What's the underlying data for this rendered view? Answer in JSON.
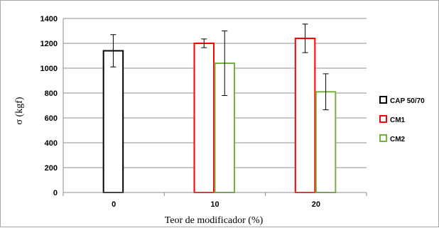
{
  "chart_data": {
    "type": "bar",
    "categories": [
      "0",
      "10",
      "20"
    ],
    "xlabel": "Teor de modificador (%)",
    "ylabel": "σ (kgf)",
    "ylim": [
      0,
      1400
    ],
    "yticks": [
      0,
      200,
      400,
      600,
      800,
      1000,
      1200,
      1400
    ],
    "grid": true,
    "legend_position": "right",
    "series": [
      {
        "name": "CAP 50/70",
        "color": "#000000",
        "values": [
          1140,
          null,
          null
        ],
        "errors": [
          130,
          null,
          null
        ]
      },
      {
        "name": "CM1",
        "color": "#ff0000",
        "values": [
          null,
          1200,
          1240
        ],
        "errors": [
          null,
          35,
          115
        ]
      },
      {
        "name": "CM2",
        "color": "#77b143",
        "values": [
          null,
          1040,
          810
        ],
        "errors": [
          null,
          260,
          145
        ]
      }
    ]
  }
}
